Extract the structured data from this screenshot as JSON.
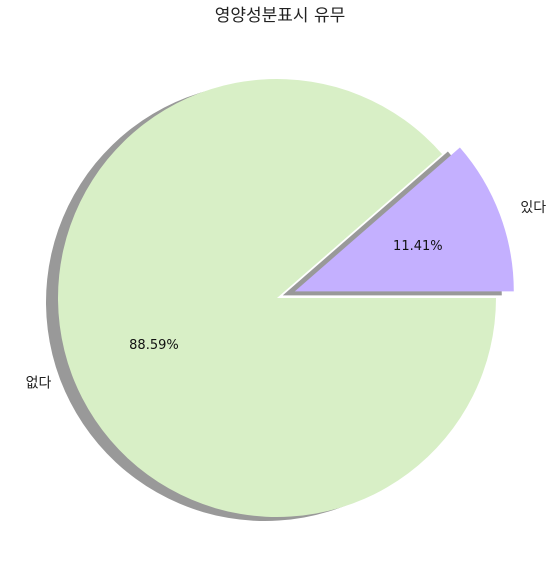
{
  "chart_data": {
    "type": "pie",
    "title": "영양성분표시 유무",
    "slices": [
      {
        "label": "있다",
        "value": 11.41,
        "pct_label": "11.41%",
        "color": "#c4b0ff",
        "exploded": true
      },
      {
        "label": "없다",
        "value": 88.59,
        "pct_label": "88.59%",
        "color": "#d8efc6",
        "exploded": false
      }
    ],
    "shadow": true,
    "shadow_color": "#999999",
    "start_angle_deg": 0,
    "direction": "counterclockwise"
  }
}
